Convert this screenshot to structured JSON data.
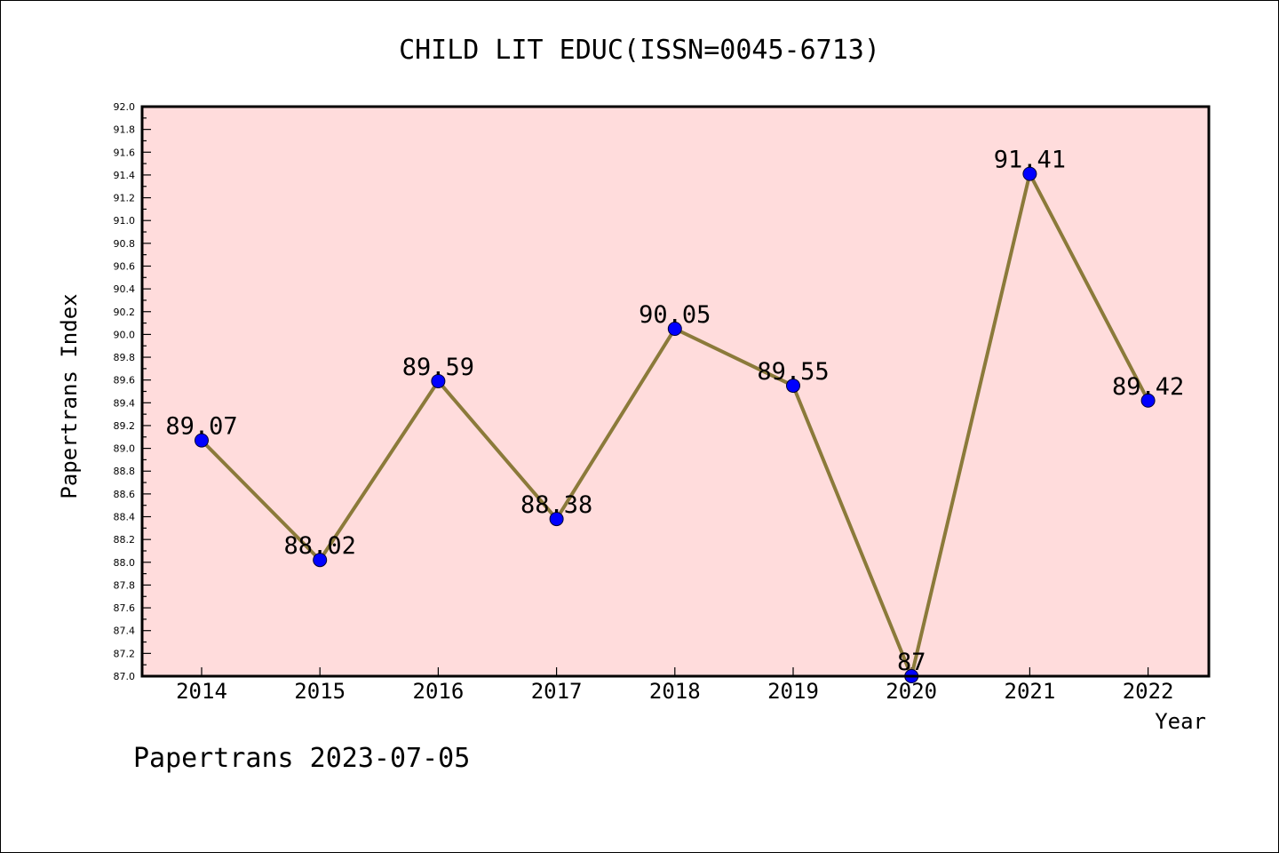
{
  "chart_data": {
    "type": "line",
    "title": "CHILD LIT EDUC(ISSN=0045-6713)",
    "xlabel": "Year",
    "ylabel": "Papertrans Index",
    "footer": "Papertrans 2023-07-05",
    "ylim": [
      87.0,
      92.0
    ],
    "y_major_step": 0.2,
    "y_minor_step": 0.1,
    "y_tick_decimals": 1,
    "categories": [
      "2014",
      "2015",
      "2016",
      "2017",
      "2018",
      "2019",
      "2020",
      "2021",
      "2022"
    ],
    "series": [
      {
        "values": [
          89.07,
          88.02,
          89.59,
          88.38,
          90.05,
          89.55,
          87.0,
          91.41,
          89.42
        ],
        "labels": [
          "89.07",
          "88.02",
          "89.59",
          "88.38",
          "90.05",
          "89.55",
          "87",
          "91.41",
          "89.42"
        ],
        "line_color": "#8b7a3a",
        "marker_color": "#0000ff"
      }
    ],
    "plot_background": "#ffdcdc",
    "grid": false,
    "legend": "none"
  }
}
